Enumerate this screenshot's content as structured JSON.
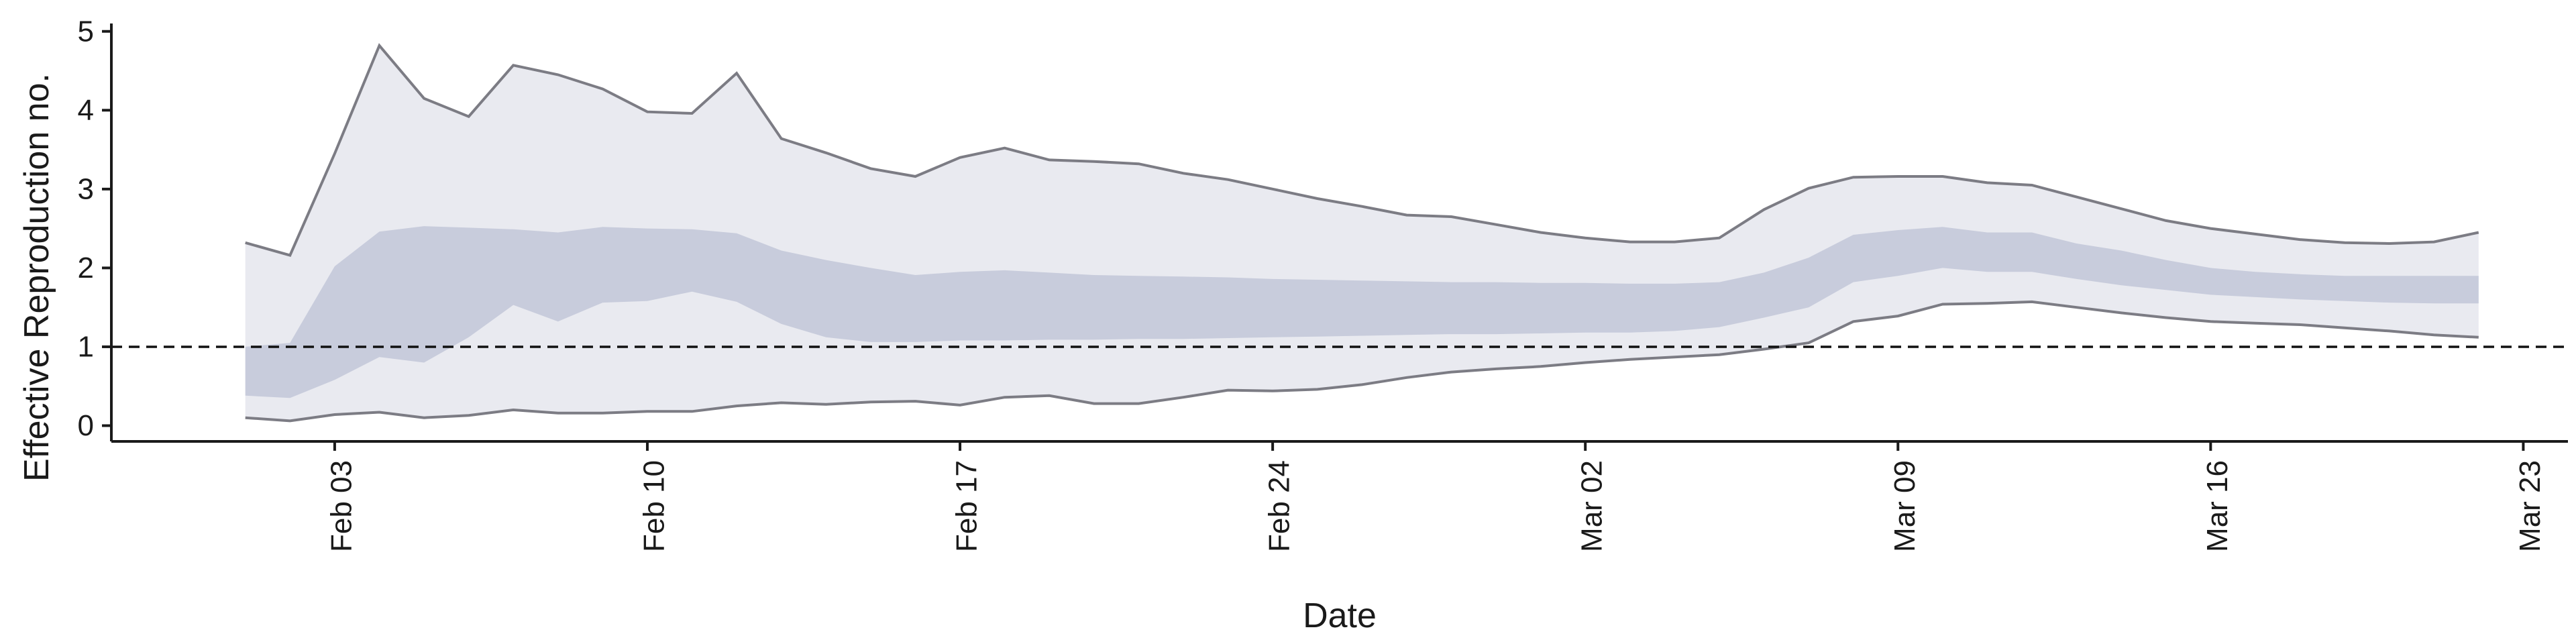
{
  "chart_data": {
    "type": "area",
    "title": "",
    "xlabel": "Date",
    "ylabel": "Effective Reproduction no.",
    "ylim": [
      -0.2,
      5.1
    ],
    "xlim": [
      "2020-01-29",
      "2020-03-24"
    ],
    "x_ticks": [
      "2020-02-03",
      "2020-02-10",
      "2020-02-17",
      "2020-02-24",
      "2020-03-02",
      "2020-03-09",
      "2020-03-16",
      "2020-03-23"
    ],
    "x_tick_labels": [
      "Feb 03",
      "Feb 10",
      "Feb 17",
      "Feb 24",
      "Mar 02",
      "Mar 09",
      "Mar 16",
      "Mar 23"
    ],
    "y_ticks": [
      0,
      1,
      2,
      3,
      4,
      5
    ],
    "y_tick_labels": [
      "0",
      "1",
      "2",
      "3",
      "4",
      "5"
    ],
    "reference_line": {
      "y": 1,
      "style": "dashed"
    },
    "grid": false,
    "legend": "none",
    "colors": {
      "outer_band": "#e9eaf0",
      "inner_band": "#c8ccdc",
      "bound_line": "#7c7c84",
      "reference": "#111111",
      "axis": "#1a1a1a"
    },
    "x": [
      "2020-02-01",
      "2020-02-02",
      "2020-02-03",
      "2020-02-04",
      "2020-02-05",
      "2020-02-06",
      "2020-02-07",
      "2020-02-08",
      "2020-02-09",
      "2020-02-10",
      "2020-02-11",
      "2020-02-12",
      "2020-02-13",
      "2020-02-14",
      "2020-02-15",
      "2020-02-16",
      "2020-02-17",
      "2020-02-18",
      "2020-02-19",
      "2020-02-20",
      "2020-02-21",
      "2020-02-22",
      "2020-02-23",
      "2020-02-24",
      "2020-02-25",
      "2020-02-26",
      "2020-02-27",
      "2020-02-28",
      "2020-02-29",
      "2020-03-01",
      "2020-03-02",
      "2020-03-03",
      "2020-03-04",
      "2020-03-05",
      "2020-03-06",
      "2020-03-07",
      "2020-03-08",
      "2020-03-09",
      "2020-03-10",
      "2020-03-11",
      "2020-03-12",
      "2020-03-13",
      "2020-03-14",
      "2020-03-15",
      "2020-03-16",
      "2020-03-17",
      "2020-03-18",
      "2020-03-19",
      "2020-03-20",
      "2020-03-21",
      "2020-03-22"
    ],
    "upper_90": [
      2.32,
      2.16,
      3.45,
      4.82,
      4.15,
      3.92,
      4.57,
      4.45,
      4.27,
      3.98,
      3.96,
      4.47,
      3.64,
      3.46,
      3.26,
      3.16,
      3.4,
      3.52,
      3.37,
      3.35,
      3.32,
      3.2,
      3.12,
      3.0,
      2.88,
      2.78,
      2.67,
      2.65,
      2.55,
      2.45,
      2.38,
      2.33,
      2.33,
      2.38,
      2.74,
      3.01,
      3.15,
      3.16,
      3.16,
      3.08,
      3.05,
      2.9,
      2.75,
      2.6,
      2.5,
      2.43,
      2.36,
      2.32,
      2.31,
      2.33,
      2.45
    ],
    "lower_90": [
      0.1,
      0.06,
      0.14,
      0.17,
      0.1,
      0.13,
      0.2,
      0.16,
      0.16,
      0.18,
      0.18,
      0.25,
      0.29,
      0.27,
      0.3,
      0.31,
      0.26,
      0.36,
      0.38,
      0.28,
      0.28,
      0.36,
      0.45,
      0.44,
      0.46,
      0.52,
      0.61,
      0.68,
      0.72,
      0.75,
      0.8,
      0.84,
      0.87,
      0.9,
      0.97,
      1.05,
      1.32,
      1.39,
      1.54,
      1.55,
      1.57,
      1.5,
      1.43,
      1.37,
      1.32,
      1.3,
      1.28,
      1.24,
      1.2,
      1.15,
      1.12
    ],
    "upper_50": [
      1.0,
      1.05,
      2.02,
      2.46,
      2.53,
      2.51,
      2.49,
      2.45,
      2.52,
      2.5,
      2.49,
      2.44,
      2.22,
      2.1,
      2.0,
      1.91,
      1.95,
      1.97,
      1.94,
      1.91,
      1.9,
      1.89,
      1.88,
      1.86,
      1.85,
      1.84,
      1.83,
      1.82,
      1.82,
      1.81,
      1.81,
      1.8,
      1.8,
      1.82,
      1.94,
      2.13,
      2.42,
      2.48,
      2.52,
      2.45,
      2.45,
      2.31,
      2.22,
      2.1,
      2.0,
      1.95,
      1.92,
      1.9,
      1.9,
      1.9,
      1.9
    ],
    "lower_50": [
      0.38,
      0.35,
      0.58,
      0.87,
      0.8,
      1.12,
      1.53,
      1.32,
      1.56,
      1.58,
      1.7,
      1.57,
      1.29,
      1.12,
      1.06,
      1.06,
      1.08,
      1.08,
      1.09,
      1.09,
      1.1,
      1.1,
      1.11,
      1.12,
      1.13,
      1.14,
      1.15,
      1.16,
      1.16,
      1.17,
      1.18,
      1.18,
      1.2,
      1.25,
      1.37,
      1.5,
      1.82,
      1.9,
      2.0,
      1.95,
      1.95,
      1.86,
      1.78,
      1.72,
      1.66,
      1.63,
      1.6,
      1.58,
      1.56,
      1.55,
      1.55
    ]
  }
}
